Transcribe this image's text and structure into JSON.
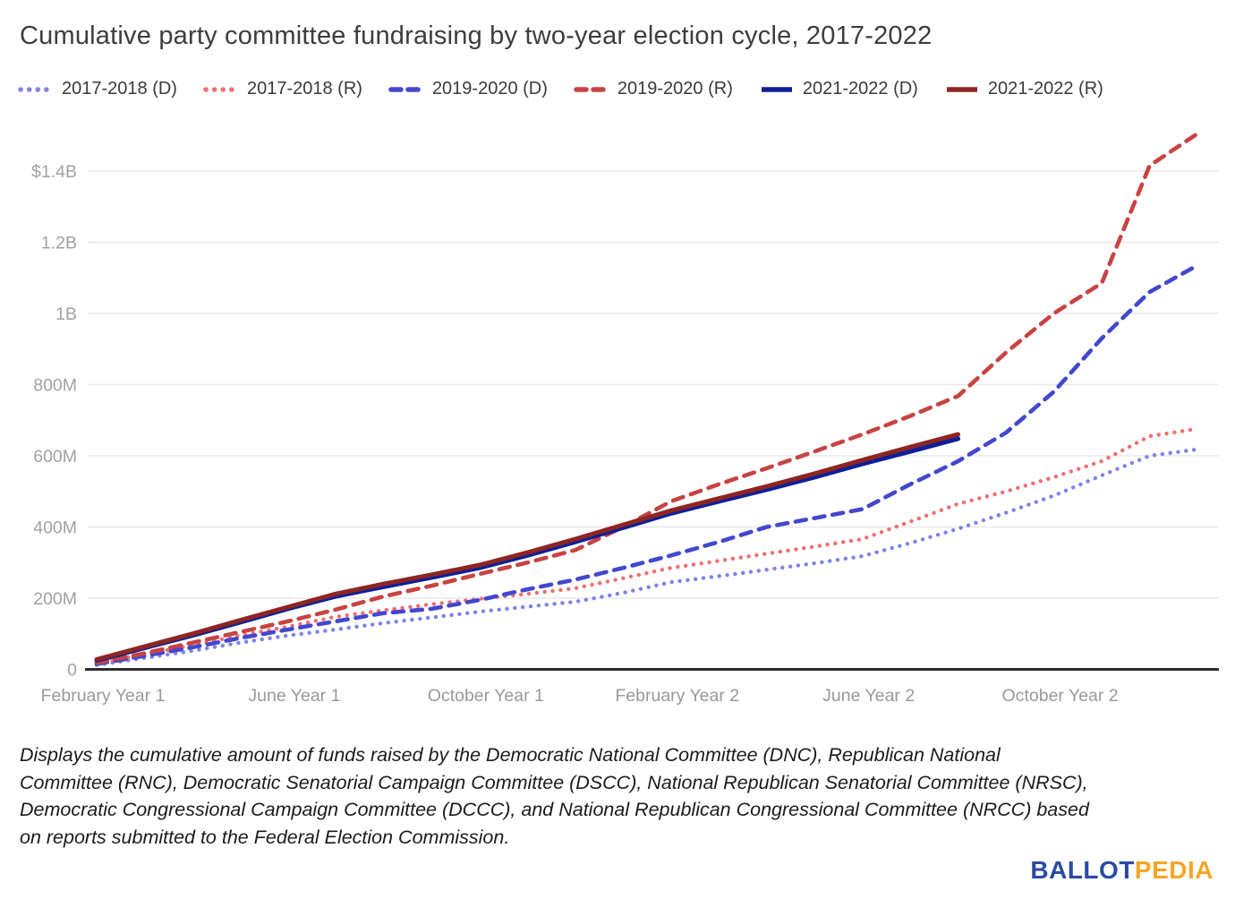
{
  "chart_data": {
    "type": "line",
    "title": "Cumulative party committee fundraising by two-year election cycle, 2017-2022",
    "unit": "millions of US dollars",
    "x_axis": {
      "tick_labels": [
        "February Year 1",
        "June Year 1",
        "October Year 1",
        "February Year 2",
        "June Year 2",
        "October Year 2"
      ],
      "tick_point_indices": [
        0,
        4,
        8,
        12,
        16,
        20
      ],
      "points_per_series_max": 24
    },
    "y_axis": {
      "tick_labels": [
        "$1.4B",
        "1.2B",
        "1B",
        "800M",
        "600M",
        "400M",
        "200M",
        "0"
      ],
      "tick_values": [
        1400,
        1200,
        1000,
        800,
        600,
        400,
        200,
        0
      ],
      "ylim": [
        0,
        1520
      ]
    },
    "grid": "horizontal-only",
    "legend_position": "top-left",
    "series": [
      {
        "name": "2017-2018 (D)",
        "line_style": "dotted",
        "color": "#8183e6",
        "values": [
          12,
          32,
          52,
          75,
          95,
          112,
          130,
          146,
          162,
          176,
          190,
          215,
          245,
          262,
          280,
          298,
          318,
          355,
          395,
          440,
          488,
          545,
          600,
          618
        ]
      },
      {
        "name": "2017-2018 (R)",
        "line_style": "dotted",
        "color": "#ee7070",
        "values": [
          18,
          42,
          68,
          95,
          120,
          148,
          166,
          183,
          198,
          212,
          228,
          256,
          285,
          305,
          325,
          345,
          366,
          415,
          465,
          500,
          540,
          585,
          655,
          676
        ]
      },
      {
        "name": "2019-2020 (D)",
        "line_style": "dashed",
        "color": "#4347ce",
        "values": [
          15,
          38,
          62,
          88,
          112,
          135,
          158,
          170,
          195,
          225,
          252,
          285,
          320,
          358,
          400,
          425,
          450,
          520,
          585,
          665,
          780,
          930,
          1060,
          1135
        ]
      },
      {
        "name": "2019-2020 (R)",
        "line_style": "dashed",
        "color": "#c84343",
        "values": [
          18,
          45,
          75,
          105,
          135,
          168,
          205,
          235,
          268,
          300,
          335,
          400,
          472,
          520,
          565,
          612,
          660,
          712,
          768,
          890,
          1000,
          1085,
          1415,
          1505
        ]
      },
      {
        "name": "2021-2022 (D)",
        "line_style": "solid",
        "color": "#0b1f99",
        "values": [
          25,
          60,
          95,
          132,
          170,
          205,
          232,
          258,
          285,
          320,
          358,
          398,
          438,
          472,
          505,
          540,
          577,
          612,
          648
        ]
      },
      {
        "name": "2021-2022 (R)",
        "line_style": "solid",
        "color": "#8e2522",
        "values": [
          28,
          64,
          100,
          138,
          175,
          212,
          240,
          266,
          293,
          328,
          366,
          406,
          446,
          480,
          514,
          550,
          588,
          625,
          660
        ]
      }
    ],
    "colors": {
      "gridline": "#e8e8e8",
      "axis_baseline": "#2d2d2d",
      "axis_label": "#a2a2a2"
    }
  },
  "footnote": {
    "lines": [
      "Displays the cumulative amount of funds raised by the Democratic National Committee (DNC), Republican National",
      "Committee (RNC), Democratic Senatorial Campaign Committee (DSCC), National Republican Senatorial Committee (NRSC),",
      "Democratic Congressional Campaign Committee (DCCC), and National Republican Congressional Committee (NRCC) based",
      "on reports submitted to the Federal Election Commission."
    ]
  },
  "logo": {
    "part1": "BALLOT",
    "part2": "PEDIA",
    "part1_color": "#2b4aa2",
    "part2_color": "#f6a623"
  }
}
